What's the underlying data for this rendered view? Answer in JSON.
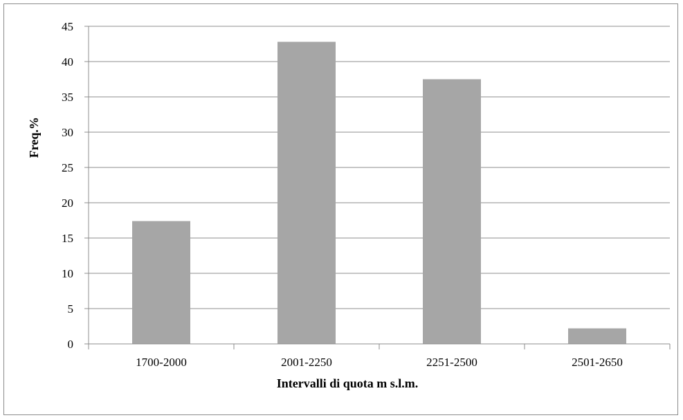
{
  "chart_data": {
    "type": "bar",
    "title": "",
    "xlabel": "Intervalli di quota m s.l.m.",
    "ylabel": "Freq.%",
    "categories": [
      "1700-2000",
      "2001-2250",
      "2251-2500",
      "2501-2650"
    ],
    "values": [
      17.4,
      42.8,
      37.5,
      2.2
    ],
    "ylim": [
      0,
      45
    ],
    "yticks": [
      0,
      5,
      10,
      15,
      20,
      25,
      30,
      35,
      40,
      45
    ],
    "grid": true,
    "legend": "none",
    "bar_color": "#a6a6a6",
    "grid_color": "#8c8c8c"
  }
}
